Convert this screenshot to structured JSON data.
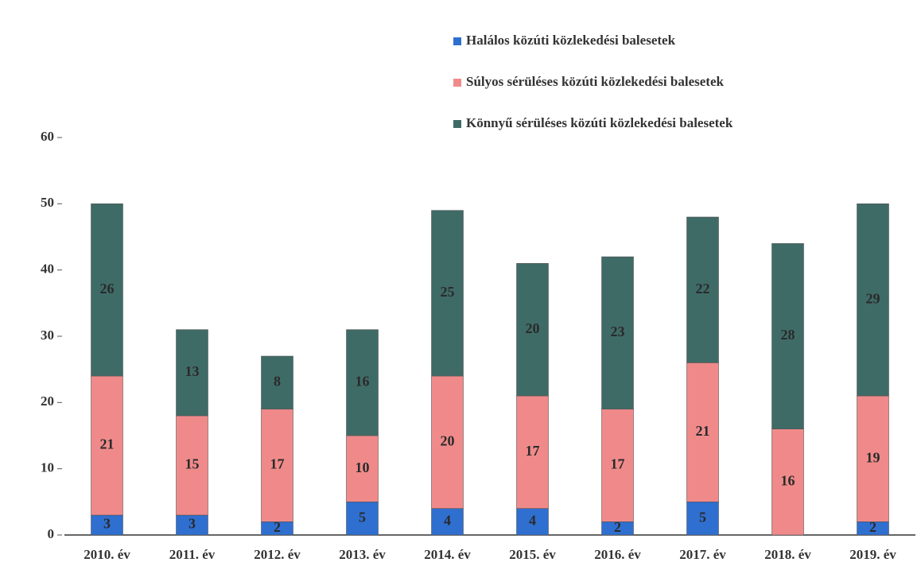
{
  "chart_data": {
    "type": "stacked_bar",
    "categories": [
      "2010. év",
      "2011. év",
      "2012. év",
      "2013. év",
      "2014. év",
      "2015. év",
      "2016. év",
      "2017. év",
      "2018. év",
      "2019. év"
    ],
    "series": [
      {
        "name": "Halálos közúti közlekedési balesetek",
        "color": "#2f6fd0",
        "values": [
          3,
          3,
          2,
          5,
          4,
          4,
          2,
          5,
          0,
          2
        ]
      },
      {
        "name": "Súlyos sérüléses közúti közlekedési balesetek",
        "color": "#f08a8a",
        "values": [
          21,
          15,
          17,
          10,
          20,
          17,
          17,
          21,
          16,
          19
        ]
      },
      {
        "name": "Könnyű sérüléses közúti közlekedési balesetek",
        "color": "#3f6b67",
        "values": [
          26,
          13,
          8,
          16,
          25,
          20,
          23,
          22,
          28,
          29
        ]
      }
    ],
    "ylim": [
      0,
      60
    ],
    "yticks": [
      0,
      10,
      20,
      30,
      40,
      50,
      60
    ],
    "legend": "top-right"
  }
}
